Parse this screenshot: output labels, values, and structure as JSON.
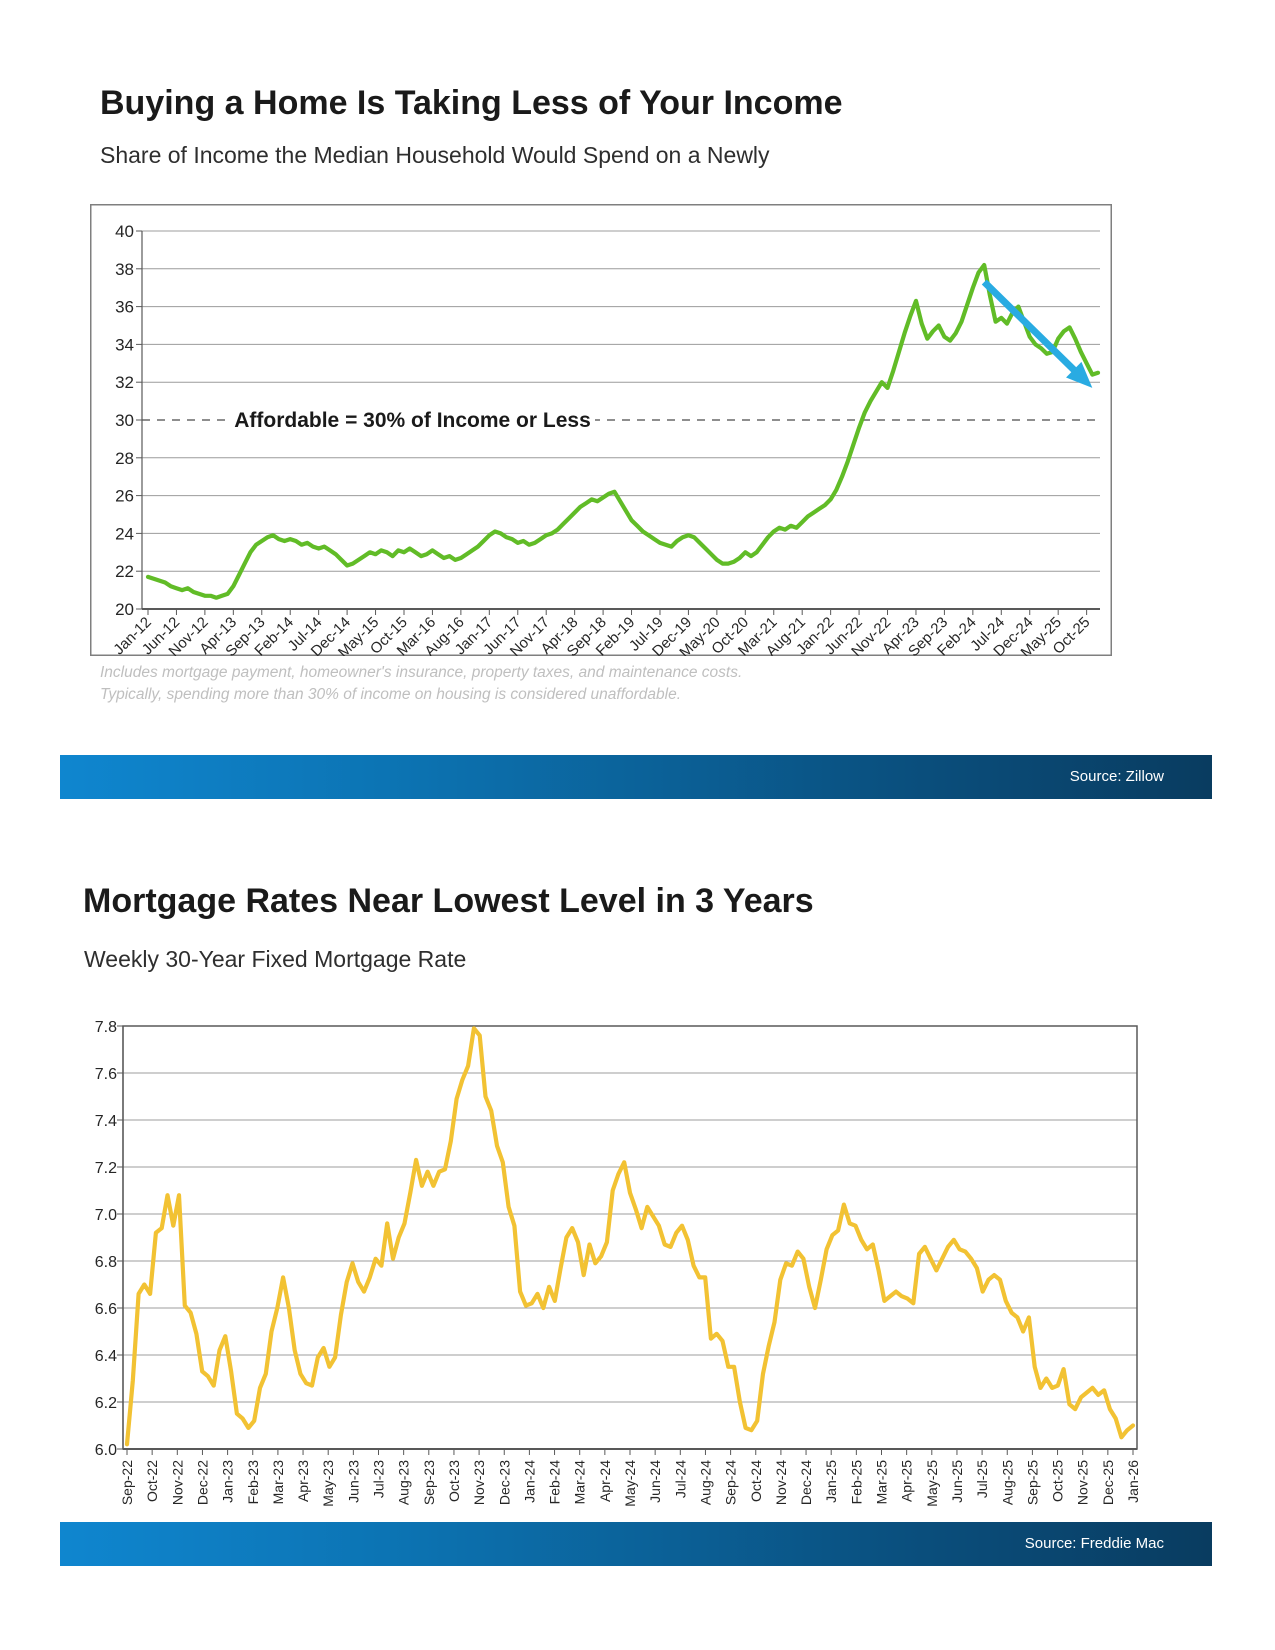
{
  "section1": {
    "title": "Buying a Home Is Taking Less of Your Income",
    "subtitle": "Share of Income the Median Household Would Spend on a Newly",
    "footnote_line1": "Includes mortgage payment, homeowner's insurance, property taxes, and maintenance costs.",
    "footnote_line2": "Typically, spending more than 30% of income on housing is considered unaffordable.",
    "source_label": "Source: Zillow"
  },
  "section2": {
    "title": "Mortgage Rates Near Lowest Level in 3 Years",
    "subtitle": "Weekly 30-Year Fixed Mortgage Rate",
    "source_label": "Source: Freddie Mac"
  },
  "colors": {
    "green_line": "#61bc27",
    "yellow_line": "#f2c233",
    "arrow_blue": "#29abe2",
    "grid": "#9c9c9c",
    "axis": "#595959",
    "border": "#7f7f7f",
    "dash": "#7f7f7f",
    "tick_text": "#262626",
    "bar_gradient_left": "#0f86cf",
    "bar_gradient_right": "#093c60"
  },
  "chart_data": [
    {
      "type": "line",
      "title": "Buying a Home Is Taking Less of Your Income",
      "subtitle": "Share of Income the Median Household Would Spend on a Newly",
      "frequency": "monthly",
      "x_start": "Jan-12",
      "x_end": "Dec-25",
      "ylim": [
        20,
        40
      ],
      "ytick_step": 2,
      "y_tick_labels": [
        "40",
        "38",
        "36",
        "34",
        "32",
        "30",
        "28",
        "26",
        "24",
        "22",
        "20"
      ],
      "x_tick_labels": [
        "Jan-12",
        "Jun-12",
        "Nov-12",
        "Apr-13",
        "Sep-13",
        "Feb-14",
        "Jul-14",
        "Dec-14",
        "May-15",
        "Oct-15",
        "Mar-16",
        "Aug-16",
        "Jan-17",
        "Jun-17",
        "Nov-17",
        "Apr-18",
        "Sep-18",
        "Feb-19",
        "Jul-19",
        "Dec-19",
        "May-20",
        "Oct-20",
        "Mar-21",
        "Aug-21",
        "Jan-22",
        "Jun-22",
        "Nov-22",
        "Apr-23",
        "Sep-23",
        "Feb-24",
        "Jul-24",
        "Dec-24",
        "May-25",
        "Oct-25"
      ],
      "line_color": "#61bc27",
      "grid": true,
      "legend": "none",
      "annotation": {
        "text": "Affordable = 30% of Income or Less",
        "value": 30
      },
      "arrow": {
        "color": "#29abe2",
        "from": {
          "index": 147,
          "value": 37.3
        },
        "to": {
          "index": 166,
          "value": 31.7
        }
      },
      "source": "Source: Zillow",
      "values": [
        21.7,
        21.6,
        21.5,
        21.4,
        21.2,
        21.1,
        21.0,
        21.1,
        20.9,
        20.8,
        20.7,
        20.7,
        20.6,
        20.7,
        20.8,
        21.2,
        21.8,
        22.4,
        23.0,
        23.4,
        23.6,
        23.8,
        23.9,
        23.7,
        23.6,
        23.7,
        23.6,
        23.4,
        23.5,
        23.3,
        23.2,
        23.3,
        23.1,
        22.9,
        22.6,
        22.3,
        22.4,
        22.6,
        22.8,
        23.0,
        22.9,
        23.1,
        23.0,
        22.8,
        23.1,
        23.0,
        23.2,
        23.0,
        22.8,
        22.9,
        23.1,
        22.9,
        22.7,
        22.8,
        22.6,
        22.7,
        22.9,
        23.1,
        23.3,
        23.6,
        23.9,
        24.1,
        24.0,
        23.8,
        23.7,
        23.5,
        23.6,
        23.4,
        23.5,
        23.7,
        23.9,
        24.0,
        24.2,
        24.5,
        24.8,
        25.1,
        25.4,
        25.6,
        25.8,
        25.7,
        25.9,
        26.1,
        26.2,
        25.7,
        25.2,
        24.7,
        24.4,
        24.1,
        23.9,
        23.7,
        23.5,
        23.4,
        23.3,
        23.6,
        23.8,
        23.9,
        23.8,
        23.5,
        23.2,
        22.9,
        22.6,
        22.4,
        22.4,
        22.5,
        22.7,
        23.0,
        22.8,
        23.0,
        23.4,
        23.8,
        24.1,
        24.3,
        24.2,
        24.4,
        24.3,
        24.6,
        24.9,
        25.1,
        25.3,
        25.5,
        25.8,
        26.3,
        27.0,
        27.8,
        28.7,
        29.6,
        30.4,
        31.0,
        31.5,
        32.0,
        31.7,
        32.6,
        33.6,
        34.6,
        35.5,
        36.3,
        35.1,
        34.3,
        34.7,
        35.0,
        34.4,
        34.2,
        34.6,
        35.2,
        36.1,
        37.0,
        37.8,
        38.2,
        36.6,
        35.2,
        35.4,
        35.1,
        35.7,
        36.0,
        35.2,
        34.4,
        34.0,
        33.8,
        33.5,
        33.6,
        34.3,
        34.7,
        34.9,
        34.3,
        33.6,
        33.0,
        32.4,
        32.5
      ]
    },
    {
      "type": "line",
      "title": "Mortgage Rates Near Lowest Level in 3 Years",
      "subtitle": "Weekly 30-Year Fixed Mortgage Rate",
      "frequency": "weekly",
      "x_start": "Sep-22",
      "x_end": "Jan-26",
      "ylim": [
        6.0,
        7.8
      ],
      "ytick_step": 0.2,
      "y_tick_labels": [
        "7.8",
        "7.6",
        "7.4",
        "7.2",
        "7.0",
        "6.8",
        "6.6",
        "6.4",
        "6.2",
        "6.0"
      ],
      "x_tick_labels": [
        "Sep-22",
        "Oct-22",
        "Nov-22",
        "Dec-22",
        "Jan-23",
        "Feb-23",
        "Mar-23",
        "Apr-23",
        "May-23",
        "Jun-23",
        "Jul-23",
        "Aug-23",
        "Sep-23",
        "Oct-23",
        "Nov-23",
        "Dec-23",
        "Jan-24",
        "Feb-24",
        "Mar-24",
        "Apr-24",
        "May-24",
        "Jun-24",
        "Jul-24",
        "Aug-24",
        "Sep-24",
        "Oct-24",
        "Nov-24",
        "Dec-24",
        "Jan-25",
        "Feb-25",
        "Mar-25",
        "Apr-25",
        "May-25",
        "Jun-25",
        "Jul-25",
        "Aug-25",
        "Sep-25",
        "Oct-25",
        "Nov-25",
        "Dec-25",
        "Jan-26"
      ],
      "line_color": "#f2c233",
      "grid": true,
      "legend": "none",
      "source": "Source: Freddie Mac",
      "values": [
        6.02,
        6.29,
        6.66,
        6.7,
        6.66,
        6.92,
        6.94,
        7.08,
        6.95,
        7.08,
        6.61,
        6.58,
        6.49,
        6.33,
        6.31,
        6.27,
        6.42,
        6.48,
        6.33,
        6.15,
        6.13,
        6.09,
        6.12,
        6.26,
        6.32,
        6.5,
        6.6,
        6.73,
        6.6,
        6.42,
        6.32,
        6.28,
        6.27,
        6.39,
        6.43,
        6.35,
        6.39,
        6.57,
        6.71,
        6.79,
        6.71,
        6.67,
        6.73,
        6.81,
        6.78,
        6.96,
        6.81,
        6.9,
        6.96,
        7.09,
        7.23,
        7.12,
        7.18,
        7.12,
        7.18,
        7.19,
        7.31,
        7.49,
        7.57,
        7.63,
        7.79,
        7.76,
        7.5,
        7.44,
        7.29,
        7.22,
        7.03,
        6.95,
        6.67,
        6.61,
        6.62,
        6.66,
        6.6,
        6.69,
        6.63,
        6.77,
        6.9,
        6.94,
        6.88,
        6.74,
        6.87,
        6.79,
        6.82,
        6.88,
        7.1,
        7.17,
        7.22,
        7.09,
        7.02,
        6.94,
        7.03,
        6.99,
        6.95,
        6.87,
        6.86,
        6.92,
        6.95,
        6.89,
        6.78,
        6.73,
        6.73,
        6.47,
        6.49,
        6.46,
        6.35,
        6.35,
        6.2,
        6.09,
        6.08,
        6.12,
        6.32,
        6.44,
        6.54,
        6.72,
        6.79,
        6.78,
        6.84,
        6.81,
        6.69,
        6.6,
        6.72,
        6.85,
        6.91,
        6.93,
        7.04,
        6.96,
        6.95,
        6.89,
        6.85,
        6.87,
        6.76,
        6.63,
        6.65,
        6.67,
        6.65,
        6.64,
        6.62,
        6.83,
        6.86,
        6.81,
        6.76,
        6.81,
        6.86,
        6.89,
        6.85,
        6.84,
        6.81,
        6.77,
        6.67,
        6.72,
        6.74,
        6.72,
        6.63,
        6.58,
        6.56,
        6.5,
        6.56,
        6.35,
        6.26,
        6.3,
        6.26,
        6.27,
        6.34,
        6.19,
        6.17,
        6.22,
        6.24,
        6.26,
        6.23,
        6.25,
        6.17,
        6.13,
        6.05,
        6.08,
        6.1
      ]
    }
  ]
}
